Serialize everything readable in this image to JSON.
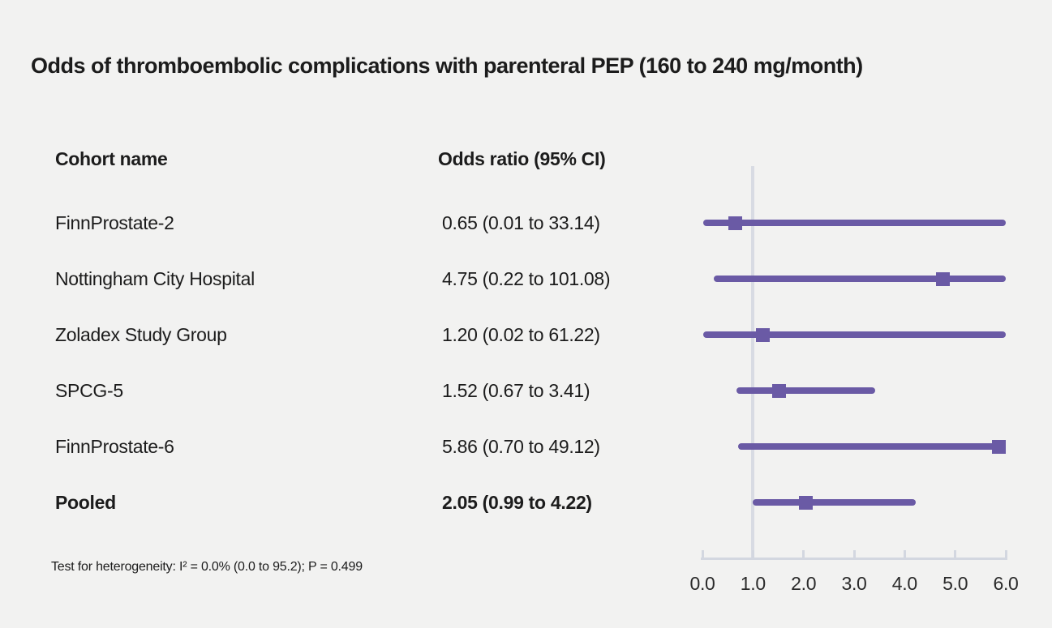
{
  "title": "Odds of thromboembolic complications with parenteral PEP (160 to 240 mg/month)",
  "columns": {
    "cohort_header": "Cohort name",
    "or_header": "Odds ratio (95% CI)"
  },
  "footnote": "Test for heterogeneity: I² = 0.0% (0.0 to 95.2); P = 0.499",
  "colors": {
    "accent": "#6a5aa5",
    "axis": "#d3d7e0",
    "reference_line": "#d8dbe3",
    "text": "#1c1c1c",
    "background": "#f2f2f1"
  },
  "chart_data": {
    "type": "forest",
    "title": "Odds of thromboembolic complications with parenteral PEP (160 to 240 mg/month)",
    "xlim": [
      0,
      6
    ],
    "reference_line": 1.0,
    "x_ticks": [
      {
        "value": 0,
        "label": "0.0"
      },
      {
        "value": 1,
        "label": "1.0"
      },
      {
        "value": 2,
        "label": "2.0"
      },
      {
        "value": 3,
        "label": "3.0"
      },
      {
        "value": 4,
        "label": "4.0"
      },
      {
        "value": 5,
        "label": "5.0"
      },
      {
        "value": 6,
        "label": "6.0"
      }
    ],
    "rows": [
      {
        "label": "FinnProstate-2",
        "display": "0.65 (0.01 to 33.14)",
        "or": 0.65,
        "lo": 0.01,
        "hi": 33.14,
        "bold": false
      },
      {
        "label": "Nottingham City Hospital",
        "display": "4.75 (0.22 to 101.08)",
        "or": 4.75,
        "lo": 0.22,
        "hi": 101.08,
        "bold": false
      },
      {
        "label": "Zoladex Study Group",
        "display": "1.20 (0.02 to 61.22)",
        "or": 1.2,
        "lo": 0.02,
        "hi": 61.22,
        "bold": false
      },
      {
        "label": "SPCG-5",
        "display": "1.52 (0.67 to 3.41)",
        "or": 1.52,
        "lo": 0.67,
        "hi": 3.41,
        "bold": false
      },
      {
        "label": "FinnProstate-6",
        "display": "5.86 (0.70 to 49.12)",
        "or": 5.86,
        "lo": 0.7,
        "hi": 49.12,
        "bold": false
      },
      {
        "label": "Pooled",
        "display": "2.05 (0.99 to 4.22)",
        "or": 2.05,
        "lo": 0.99,
        "hi": 4.22,
        "bold": true
      }
    ]
  }
}
